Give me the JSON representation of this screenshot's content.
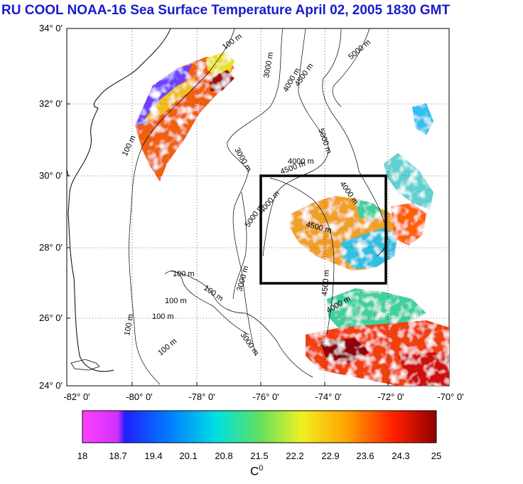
{
  "title": "RU COOL  NOAA-16 Sea Surface Temperature April 02, 2005 1830 GMT",
  "map": {
    "lat_labels": [
      "34° 0'",
      "32° 0'",
      "30° 0'",
      "28° 0'",
      "26° 0'",
      "24° 0'"
    ],
    "lon_labels": [
      "-82° 0'",
      "-80° 0'",
      "-78° 0'",
      "-76° 0'",
      "-74° 0'",
      "-72° 0'",
      "-70° 0'"
    ],
    "lat_range": [
      24,
      34
    ],
    "lon_range": [
      -82,
      -70
    ],
    "study_box": {
      "lon": [
        -76,
        -72
      ],
      "lat": [
        27,
        30
      ]
    },
    "contour_labels": [
      "100 m",
      "100 m",
      "100 m",
      "100 m",
      "100 m",
      "100 m",
      "100 m",
      "100 m",
      "3000 m",
      "3000 m",
      "3000 m",
      "3000 m",
      "4000 m",
      "4000 m",
      "4000 m",
      "4000 m",
      "4500 m",
      "4500 m",
      "4500 m",
      "4500 m",
      "5000 m",
      "5000 m",
      "5000 m",
      "4000 m"
    ]
  },
  "colorbar": {
    "ticks": [
      "18",
      "18.7",
      "19.4",
      "20.1",
      "20.8",
      "21.5",
      "22.2",
      "22.9",
      "23.6",
      "24.3",
      "25"
    ],
    "unit": "C",
    "unit_sup": "0",
    "range": [
      18,
      25
    ]
  }
}
